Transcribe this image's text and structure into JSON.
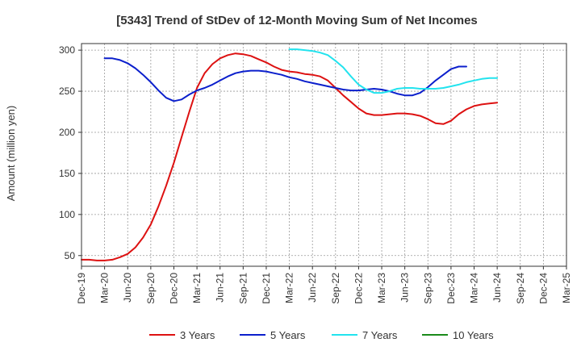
{
  "chart_data": {
    "type": "line",
    "title": "[5343]  Trend of StDev of 12-Month Moving Sum of Net Incomes",
    "ylabel": "Amount (million yen)",
    "xlabel": "",
    "ylim": [
      37,
      308
    ],
    "y_ticks": [
      50,
      100,
      150,
      200,
      250,
      300
    ],
    "x_ticks": [
      "Dec-19",
      "Mar-20",
      "Jun-20",
      "Sep-20",
      "Dec-20",
      "Mar-21",
      "Jun-21",
      "Sep-21",
      "Dec-21",
      "Mar-22",
      "Jun-22",
      "Sep-22",
      "Dec-22",
      "Mar-23",
      "Jun-23",
      "Sep-23",
      "Dec-23",
      "Mar-24",
      "Jun-24",
      "Sep-24",
      "Dec-24",
      "Mar-25"
    ],
    "grid": true,
    "legend_position": "bottom",
    "series": [
      {
        "name": "3 Years",
        "color": "#dd1111",
        "x_start": 0,
        "values": [
          45,
          45,
          44,
          44,
          45,
          48,
          52,
          60,
          72,
          88,
          110,
          135,
          163,
          194,
          225,
          254,
          272,
          283,
          290,
          294,
          296,
          295,
          293,
          289,
          285,
          280,
          276,
          274,
          273,
          271,
          270,
          268,
          263,
          254,
          245,
          237,
          229,
          223,
          221,
          221,
          222,
          223,
          223,
          222,
          220,
          216,
          211,
          210,
          214,
          222,
          228,
          232,
          234,
          235,
          236
        ]
      },
      {
        "name": "5 Years",
        "color": "#0b1fcc",
        "x_start": 3,
        "values": [
          290,
          290,
          288,
          284,
          278,
          270,
          261,
          251,
          242,
          238,
          240,
          246,
          251,
          254,
          258,
          263,
          268,
          272,
          274,
          275,
          275,
          274,
          272,
          270,
          267,
          265,
          262,
          260,
          258,
          256,
          254,
          252,
          251,
          251,
          252,
          253,
          252,
          250,
          247,
          245,
          245,
          248,
          255,
          263,
          270,
          277,
          280,
          280
        ]
      },
      {
        "name": "7 Years",
        "color": "#22e3ee",
        "x_start": 27,
        "values": [
          301,
          301,
          300,
          299,
          297,
          294,
          287,
          279,
          268,
          258,
          252,
          248,
          248,
          250,
          253,
          254,
          254,
          253,
          253,
          253,
          254,
          256,
          258,
          261,
          263,
          265,
          266,
          266
        ]
      },
      {
        "name": "10 Years",
        "color": "#1a8a1a",
        "x_start": 0,
        "values": []
      }
    ]
  }
}
